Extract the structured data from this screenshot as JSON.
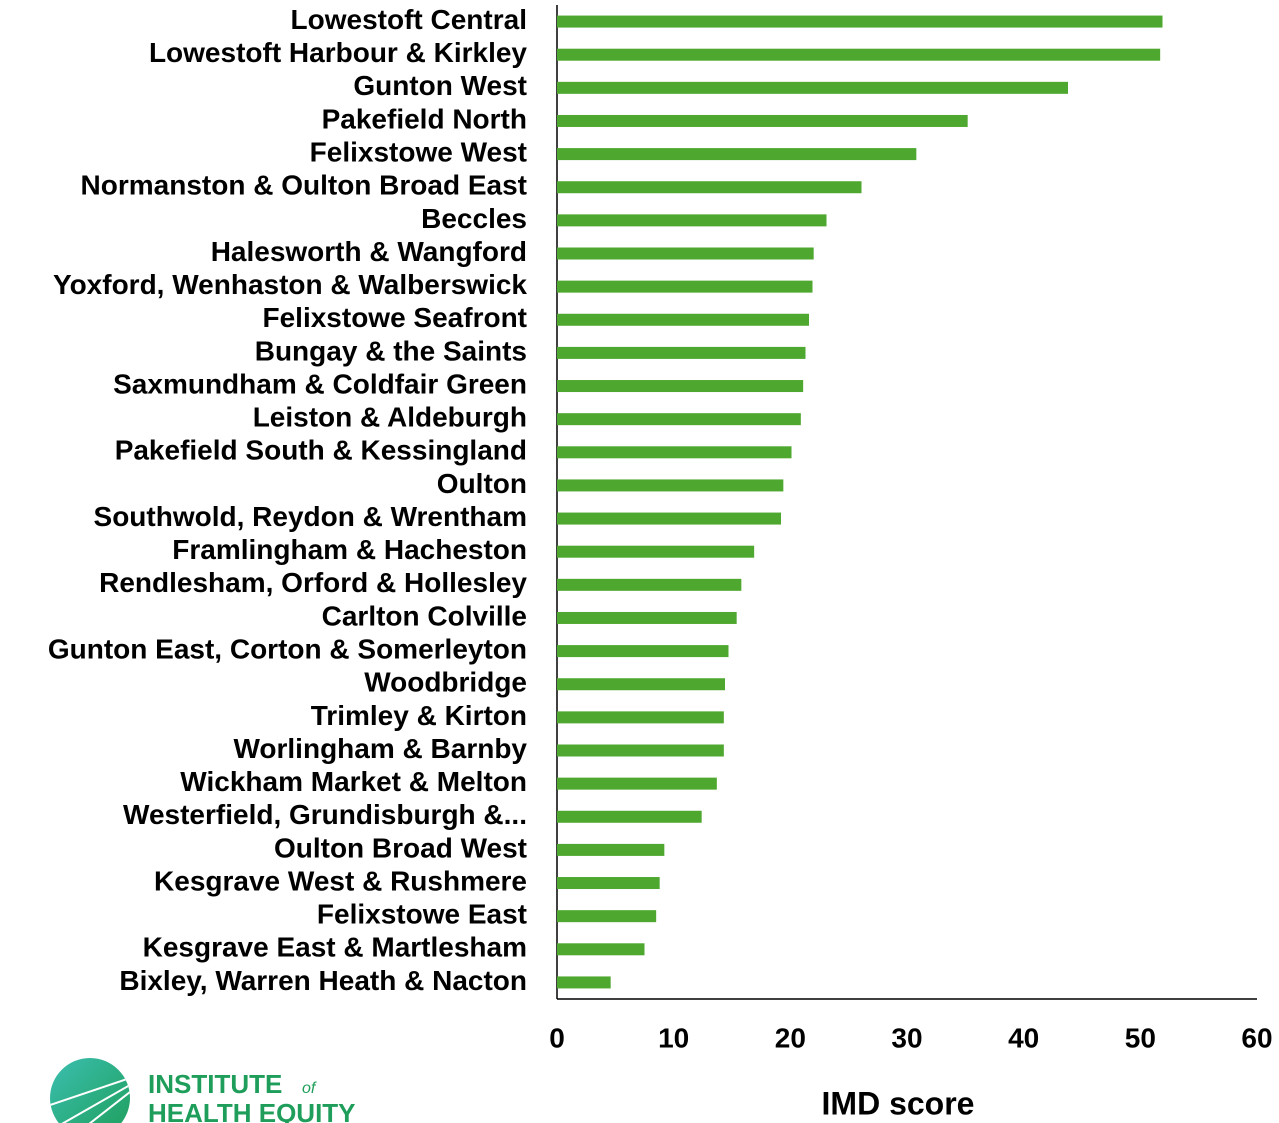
{
  "chart_data": {
    "type": "barh",
    "categories": [
      "Lowestoft Central",
      "Lowestoft Harbour & Kirkley",
      "Gunton West",
      "Pakefield North",
      "Felixstowe West",
      "Normanston & Oulton Broad East",
      "Beccles",
      "Halesworth & Wangford",
      "Yoxford, Wenhaston & Walberswick",
      "Felixstowe Seafront",
      "Bungay & the Saints",
      "Saxmundham & Coldfair Green",
      "Leiston & Aldeburgh",
      "Pakefield South & Kessingland",
      "Oulton",
      "Southwold, Reydon & Wrentham",
      "Framlingham & Hacheston",
      "Rendlesham, Orford & Hollesley",
      "Carlton Colville",
      "Gunton East, Corton & Somerleyton",
      "Woodbridge",
      "Trimley & Kirton",
      "Worlingham & Barnby",
      "Wickham Market & Melton",
      "Westerfield, Grundisburgh &...",
      "Oulton Broad West",
      "Kesgrave West & Rushmere",
      "Felixstowe East",
      "Kesgrave East & Martlesham",
      "Bixley, Warren Heath & Nacton"
    ],
    "values": [
      51.9,
      51.7,
      43.8,
      35.2,
      30.8,
      26.1,
      23.1,
      22.0,
      21.9,
      21.6,
      21.3,
      21.1,
      20.9,
      20.1,
      19.4,
      19.2,
      16.9,
      15.8,
      15.4,
      14.7,
      14.4,
      14.3,
      14.3,
      13.7,
      12.4,
      9.2,
      8.8,
      8.5,
      7.5,
      4.6
    ],
    "color": "#4ea72e",
    "xlabel": "IMD score",
    "xlim": [
      0,
      60
    ],
    "xticks": [
      0,
      10,
      20,
      30,
      40,
      50,
      60
    ],
    "grid": false
  },
  "logo": {
    "line1": "INSTITUTE",
    "of": "of",
    "line2": "HEALTH EQUITY"
  }
}
